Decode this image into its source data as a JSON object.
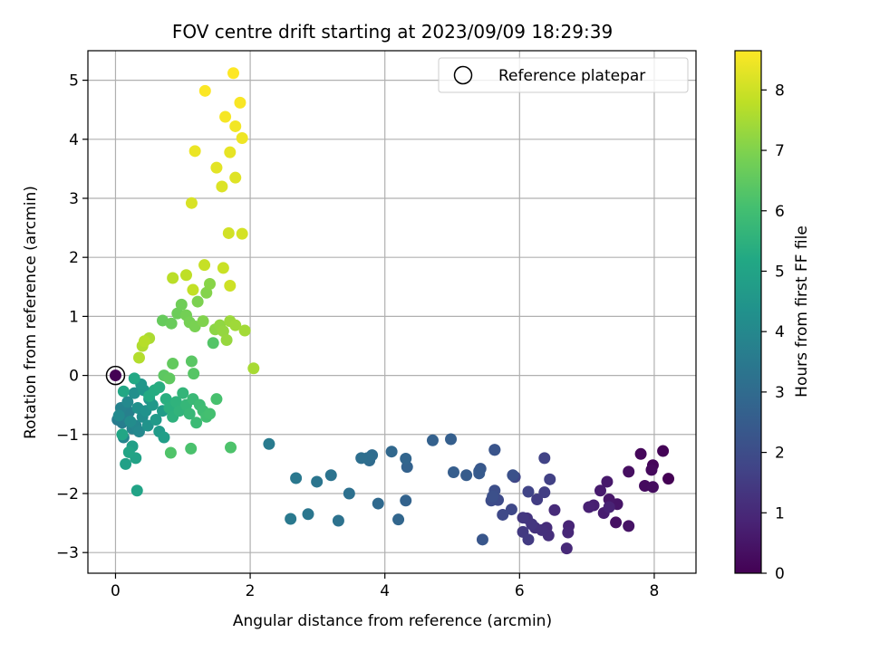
{
  "chart_data": {
    "type": "scatter",
    "title": "FOV centre drift starting at 2023/09/09 18:29:39",
    "xlabel": "Angular distance from reference (arcmin)",
    "ylabel": "Rotation from reference (arcmin)",
    "xlim": [
      -0.41,
      8.62
    ],
    "ylim": [
      -3.35,
      5.5
    ],
    "x_ticks": [
      0,
      2,
      4,
      6,
      8
    ],
    "y_ticks": [
      -3,
      -2,
      -1,
      0,
      1,
      2,
      3,
      4,
      5
    ],
    "grid": true,
    "legend": {
      "placement": "top-right",
      "entries": [
        {
          "label": "Reference platepar",
          "marker": "open-circle"
        }
      ]
    },
    "reference_point": {
      "x": 0,
      "y": 0
    },
    "colorbar": {
      "label": "Hours from first FF file",
      "colormap": "viridis",
      "range": [
        0,
        8.65
      ],
      "ticks": [
        0,
        1,
        2,
        3,
        4,
        5,
        6,
        7,
        8
      ]
    },
    "points": [
      [
        8.21,
        -1.75,
        0.0
      ],
      [
        8.13,
        -1.28,
        0.05
      ],
      [
        7.98,
        -1.52,
        0.1
      ],
      [
        7.8,
        -1.33,
        0.15
      ],
      [
        7.96,
        -1.6,
        0.2
      ],
      [
        7.86,
        -1.87,
        0.25
      ],
      [
        7.98,
        -1.89,
        0.3
      ],
      [
        7.62,
        -1.63,
        0.35
      ],
      [
        7.43,
        -2.49,
        0.4
      ],
      [
        7.62,
        -2.55,
        0.45
      ],
      [
        7.45,
        -2.18,
        0.5
      ],
      [
        7.33,
        -2.1,
        0.55
      ],
      [
        7.3,
        -1.8,
        0.6
      ],
      [
        7.2,
        -1.95,
        0.65
      ],
      [
        7.25,
        -2.33,
        0.7
      ],
      [
        7.1,
        -2.2,
        0.75
      ],
      [
        7.03,
        -2.23,
        0.8
      ],
      [
        7.33,
        -2.23,
        0.85
      ],
      [
        6.73,
        -2.55,
        0.9
      ],
      [
        6.72,
        -2.66,
        0.95
      ],
      [
        6.7,
        -2.93,
        1.0
      ],
      [
        6.52,
        -2.28,
        1.05
      ],
      [
        6.4,
        -2.58,
        1.1
      ],
      [
        6.43,
        -2.71,
        1.15
      ],
      [
        6.33,
        -2.62,
        1.2
      ],
      [
        6.23,
        -2.58,
        1.25
      ],
      [
        6.11,
        -2.42,
        1.3
      ],
      [
        6.18,
        -2.52,
        1.35
      ],
      [
        6.05,
        -2.41,
        1.4
      ],
      [
        6.05,
        -2.65,
        1.45
      ],
      [
        6.13,
        -2.78,
        1.5
      ],
      [
        6.26,
        -2.1,
        1.55
      ],
      [
        6.37,
        -1.98,
        1.6
      ],
      [
        6.45,
        -1.76,
        1.65
      ],
      [
        6.37,
        -1.4,
        1.7
      ],
      [
        6.13,
        -1.97,
        1.75
      ],
      [
        5.93,
        -1.72,
        1.8
      ],
      [
        5.88,
        -2.27,
        1.85
      ],
      [
        5.75,
        -2.36,
        1.9
      ],
      [
        5.68,
        -2.11,
        1.95
      ],
      [
        5.58,
        -2.12,
        2.0
      ],
      [
        5.63,
        -1.95,
        2.05
      ],
      [
        5.6,
        -2.05,
        2.1
      ],
      [
        5.9,
        -1.69,
        2.15
      ],
      [
        5.63,
        -1.26,
        2.2
      ],
      [
        5.63,
        -1.26,
        2.25
      ],
      [
        5.45,
        -2.78,
        2.3
      ],
      [
        5.42,
        -1.58,
        2.35
      ],
      [
        5.4,
        -1.62,
        2.4
      ],
      [
        5.4,
        -1.66,
        2.45
      ],
      [
        5.21,
        -1.69,
        2.5
      ],
      [
        5.02,
        -1.64,
        2.55
      ],
      [
        4.98,
        -1.08,
        2.6
      ],
      [
        4.71,
        -1.1,
        2.65
      ],
      [
        4.33,
        -1.55,
        2.7
      ],
      [
        4.31,
        -2.12,
        2.75
      ],
      [
        4.31,
        -1.41,
        2.8
      ],
      [
        4.2,
        -2.44,
        2.85
      ],
      [
        4.1,
        -1.29,
        2.9
      ],
      [
        3.9,
        -2.17,
        2.95
      ],
      [
        3.77,
        -1.44,
        3.0
      ],
      [
        3.81,
        -1.35,
        3.05
      ],
      [
        3.74,
        -1.4,
        3.1
      ],
      [
        3.65,
        -1.4,
        3.15
      ],
      [
        3.47,
        -2.0,
        3.2
      ],
      [
        3.31,
        -2.46,
        3.25
      ],
      [
        3.2,
        -1.69,
        3.3
      ],
      [
        2.99,
        -1.8,
        3.35
      ],
      [
        2.86,
        -2.35,
        3.4
      ],
      [
        2.68,
        -1.74,
        3.45
      ],
      [
        2.6,
        -2.43,
        3.5
      ],
      [
        2.28,
        -1.16,
        3.55
      ],
      [
        0.03,
        -0.75,
        3.6
      ],
      [
        0.1,
        -0.8,
        3.65
      ],
      [
        0.15,
        -0.7,
        3.7
      ],
      [
        0.2,
        -0.62,
        3.75
      ],
      [
        0.08,
        -0.55,
        3.8
      ],
      [
        0.25,
        -0.9,
        3.85
      ],
      [
        0.12,
        -1.05,
        3.9
      ],
      [
        0.3,
        -0.85,
        3.95
      ],
      [
        0.35,
        -0.95,
        4.0
      ],
      [
        0.18,
        -0.45,
        4.05
      ],
      [
        0.05,
        -0.68,
        4.1
      ],
      [
        0.22,
        -0.78,
        4.15
      ],
      [
        0.4,
        -0.7,
        4.2
      ],
      [
        0.28,
        -0.3,
        4.25
      ],
      [
        0.33,
        -0.55,
        4.3
      ],
      [
        0.45,
        -0.6,
        4.35
      ],
      [
        0.48,
        -0.85,
        4.4
      ],
      [
        0.5,
        -0.4,
        4.45
      ],
      [
        0.42,
        -0.25,
        4.5
      ],
      [
        0.38,
        -0.15,
        4.55
      ],
      [
        0.55,
        -0.5,
        4.6
      ],
      [
        0.6,
        -0.75,
        4.65
      ],
      [
        0.65,
        -0.95,
        4.7
      ],
      [
        0.7,
        -0.6,
        4.75
      ],
      [
        0.72,
        -1.05,
        4.8
      ],
      [
        0.25,
        -1.2,
        4.85
      ],
      [
        0.15,
        -1.5,
        4.9
      ],
      [
        0.3,
        -1.4,
        4.95
      ],
      [
        0.32,
        -1.95,
        5.0
      ],
      [
        0.2,
        -1.3,
        5.05
      ],
      [
        0.1,
        -1.0,
        5.1
      ],
      [
        0.12,
        -0.27,
        5.15
      ],
      [
        0.28,
        -0.05,
        5.2
      ],
      [
        0.5,
        -0.35,
        5.25
      ],
      [
        0.58,
        -0.25,
        5.3
      ],
      [
        0.65,
        -0.2,
        5.35
      ],
      [
        0.75,
        -0.4,
        5.4
      ],
      [
        0.8,
        -0.55,
        5.45
      ],
      [
        0.85,
        -0.7,
        5.5
      ],
      [
        0.9,
        -0.45,
        5.55
      ],
      [
        0.95,
        -0.6,
        5.6
      ],
      [
        1.0,
        -0.3,
        5.65
      ],
      [
        1.05,
        -0.5,
        5.7
      ],
      [
        1.1,
        -0.65,
        5.75
      ],
      [
        1.15,
        -0.4,
        5.8
      ],
      [
        1.2,
        -0.8,
        5.85
      ],
      [
        1.25,
        -0.5,
        5.9
      ],
      [
        1.3,
        -0.6,
        5.95
      ],
      [
        1.35,
        -0.7,
        6.0
      ],
      [
        1.4,
        -0.65,
        6.05
      ],
      [
        1.5,
        -0.4,
        6.1
      ],
      [
        1.12,
        -1.24,
        6.15
      ],
      [
        1.71,
        -1.22,
        6.2
      ],
      [
        0.82,
        -1.31,
        6.25
      ],
      [
        1.45,
        0.55,
        6.3
      ],
      [
        1.16,
        0.03,
        6.35
      ],
      [
        1.13,
        0.24,
        6.4
      ],
      [
        0.72,
        0.0,
        6.45
      ],
      [
        0.8,
        -0.05,
        6.5
      ],
      [
        0.85,
        0.2,
        6.55
      ],
      [
        0.7,
        0.93,
        6.6
      ],
      [
        0.83,
        0.88,
        6.65
      ],
      [
        0.92,
        1.05,
        6.7
      ],
      [
        0.98,
        1.2,
        6.75
      ],
      [
        1.05,
        1.02,
        6.8
      ],
      [
        1.1,
        0.9,
        6.85
      ],
      [
        1.18,
        0.83,
        6.9
      ],
      [
        1.22,
        1.25,
        6.95
      ],
      [
        1.3,
        0.92,
        7.0
      ],
      [
        1.35,
        1.4,
        7.05
      ],
      [
        1.4,
        1.55,
        7.1
      ],
      [
        1.48,
        0.78,
        7.15
      ],
      [
        1.55,
        0.85,
        7.2
      ],
      [
        1.6,
        0.75,
        7.25
      ],
      [
        1.65,
        0.6,
        7.3
      ],
      [
        1.7,
        0.92,
        7.35
      ],
      [
        1.78,
        0.85,
        7.4
      ],
      [
        1.92,
        0.76,
        7.45
      ],
      [
        2.05,
        0.12,
        7.5
      ],
      [
        0.5,
        0.63,
        7.55
      ],
      [
        0.4,
        0.5,
        7.6
      ],
      [
        0.35,
        0.3,
        7.65
      ],
      [
        0.43,
        0.58,
        7.7
      ],
      [
        0.85,
        1.65,
        7.75
      ],
      [
        1.05,
        1.7,
        7.8
      ],
      [
        1.15,
        1.45,
        7.85
      ],
      [
        1.32,
        1.87,
        7.9
      ],
      [
        1.6,
        1.82,
        7.95
      ],
      [
        1.7,
        1.52,
        8.0
      ],
      [
        1.68,
        2.41,
        8.05
      ],
      [
        1.88,
        2.4,
        8.1
      ],
      [
        1.13,
        2.92,
        8.15
      ],
      [
        1.58,
        3.2,
        8.2
      ],
      [
        1.78,
        3.35,
        8.25
      ],
      [
        1.5,
        3.52,
        8.3
      ],
      [
        1.7,
        3.78,
        8.35
      ],
      [
        1.18,
        3.8,
        8.4
      ],
      [
        1.88,
        4.02,
        8.45
      ],
      [
        1.78,
        4.22,
        8.5
      ],
      [
        1.63,
        4.38,
        8.55
      ],
      [
        1.85,
        4.62,
        8.58
      ],
      [
        1.33,
        4.82,
        8.62
      ],
      [
        1.75,
        5.12,
        8.65
      ]
    ]
  }
}
